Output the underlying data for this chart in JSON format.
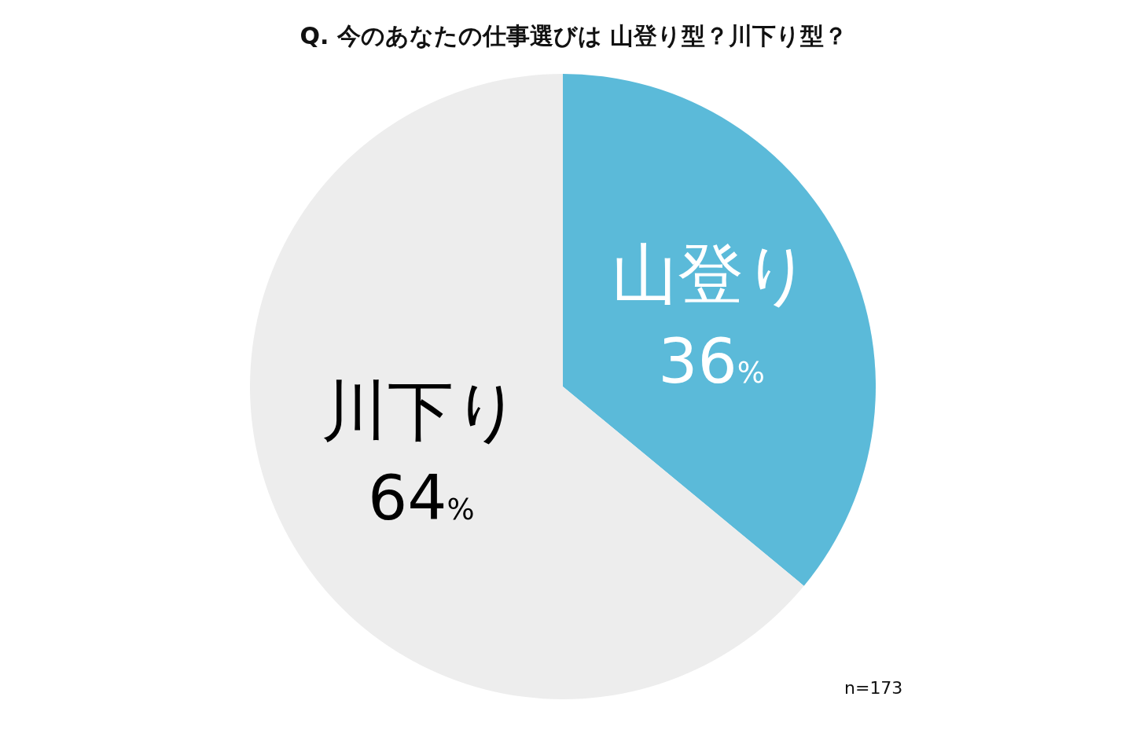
{
  "chart_data": {
    "type": "pie",
    "title": "Q. 今のあなたの仕事選びは 山登り型？川下り型？",
    "categories": [
      "山登り",
      "川下り"
    ],
    "values": [
      36,
      64
    ],
    "colors": [
      "#5bbad9",
      "#ededed"
    ],
    "value_labels": [
      "36%",
      "64%"
    ],
    "annotations": [
      "n=173"
    ]
  }
}
